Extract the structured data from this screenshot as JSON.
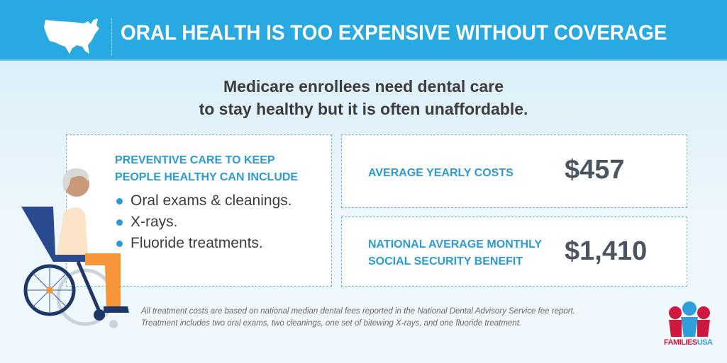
{
  "header": {
    "title": "ORAL HEALTH IS TOO EXPENSIVE WITHOUT COVERAGE",
    "icon": "us-map-icon"
  },
  "subtitle": {
    "line1": "Medicare enrollees need dental care",
    "line2": "to stay healthy but it is often unaffordable."
  },
  "preventive": {
    "heading1": "PREVENTIVE CARE TO KEEP",
    "heading2": "PEOPLE HEALTHY CAN INCLUDE",
    "items": [
      "Oral exams & cleanings.",
      "X-rays.",
      "Fluoride treatments."
    ]
  },
  "costs": {
    "label": "AVERAGE YEARLY COSTS",
    "value": "$457"
  },
  "benefit": {
    "label1": "NATIONAL AVERAGE MONTHLY",
    "label2": "SOCIAL SECURITY BENEFIT",
    "value": "$1,410"
  },
  "footnote": {
    "line1": "All treatment costs are based on national median dental fees reported in the National Dental Advisory Service fee report.",
    "line2": "Treatment includes two oral exams, two cleanings, one set of bitewing X-rays, and one fluoride treatment."
  },
  "logo": {
    "part1": "FAMILIES",
    "part2": "USA"
  },
  "colors": {
    "header": "#29a9e1",
    "accent": "#2b9bd6",
    "logo_red": "#d0183f",
    "logo_blue": "#2f9fda"
  }
}
